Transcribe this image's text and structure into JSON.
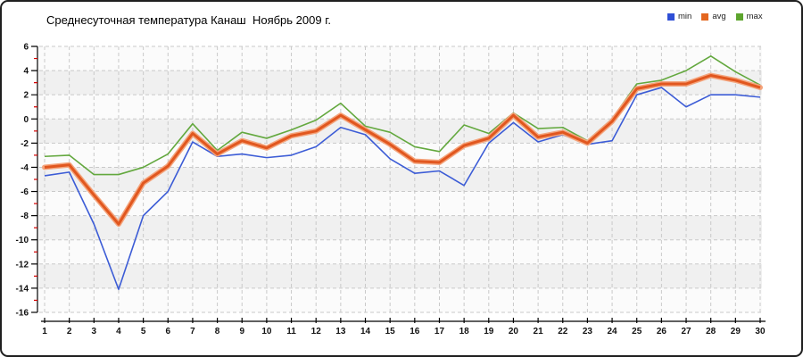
{
  "title": "Среднесуточная температура Канаш  Ноябрь 2009 г.",
  "legend": [
    {
      "label": "min",
      "color": "#2f4fd6"
    },
    {
      "label": "avg",
      "color": "#e4661f"
    },
    {
      "label": "max",
      "color": "#5da52e"
    }
  ],
  "chart_data": {
    "type": "line",
    "title": "Среднесуточная температура Канаш  Ноябрь 2009 г.",
    "xlabel": "",
    "ylabel": "",
    "x": [
      1,
      2,
      3,
      4,
      5,
      6,
      7,
      8,
      9,
      10,
      11,
      12,
      13,
      14,
      15,
      16,
      17,
      18,
      19,
      20,
      21,
      22,
      23,
      24,
      25,
      26,
      27,
      28,
      29,
      30
    ],
    "xtick_labels": [
      "1",
      "2",
      "3",
      "4",
      "5",
      "6",
      "7",
      "8",
      "9",
      "10",
      "11",
      "12",
      "13",
      "14",
      "15",
      "16",
      "17",
      "18",
      "19",
      "20",
      "21",
      "22",
      "23",
      "24",
      "25",
      "26",
      "27",
      "28",
      "29",
      "30"
    ],
    "ylim": [
      -16,
      6
    ],
    "ytick_step": 2,
    "ytick_labels": [
      "6",
      "4",
      "2",
      "0",
      "-2",
      "-4",
      "-6",
      "-8",
      "-10",
      "-12",
      "-14",
      "-16"
    ],
    "grid": true,
    "legend_position": "top-right",
    "series": [
      {
        "name": "min",
        "color": "#3c5cd6",
        "values": [
          -4.7,
          -4.4,
          -8.7,
          -14.1,
          -8.0,
          -6.0,
          -1.9,
          -3.1,
          -2.9,
          -3.2,
          -3.0,
          -2.3,
          -0.7,
          -1.3,
          -3.3,
          -4.5,
          -4.3,
          -5.5,
          -2.0,
          -0.3,
          -1.9,
          -1.3,
          -2.1,
          -1.8,
          2.0,
          2.6,
          1.0,
          2.0,
          2.0,
          1.8
        ]
      },
      {
        "name": "avg",
        "color": "#e1571f",
        "halo_color": "#f4a47c",
        "values": [
          -4.0,
          -3.8,
          -6.3,
          -8.7,
          -5.3,
          -3.9,
          -1.2,
          -2.9,
          -1.8,
          -2.4,
          -1.4,
          -1.0,
          0.3,
          -0.9,
          -2.1,
          -3.5,
          -3.6,
          -2.2,
          -1.6,
          0.3,
          -1.5,
          -1.1,
          -2.0,
          -0.2,
          2.5,
          2.9,
          2.9,
          3.6,
          3.2,
          2.6
        ]
      },
      {
        "name": "max",
        "color": "#63a83e",
        "values": [
          -3.1,
          -3.0,
          -4.6,
          -4.6,
          -4.0,
          -2.9,
          -0.4,
          -2.6,
          -1.1,
          -1.6,
          -0.9,
          -0.1,
          1.3,
          -0.6,
          -1.1,
          -2.3,
          -2.7,
          -0.5,
          -1.2,
          0.5,
          -0.8,
          -0.7,
          -1.8,
          0.0,
          2.9,
          3.2,
          4.0,
          5.2,
          3.9,
          2.8
        ]
      }
    ],
    "minor_ytick_color": "#d40000",
    "gridline_color": "#c9c9c9",
    "band_colors": [
      "#fbfbfb",
      "#f0f0f0"
    ]
  }
}
